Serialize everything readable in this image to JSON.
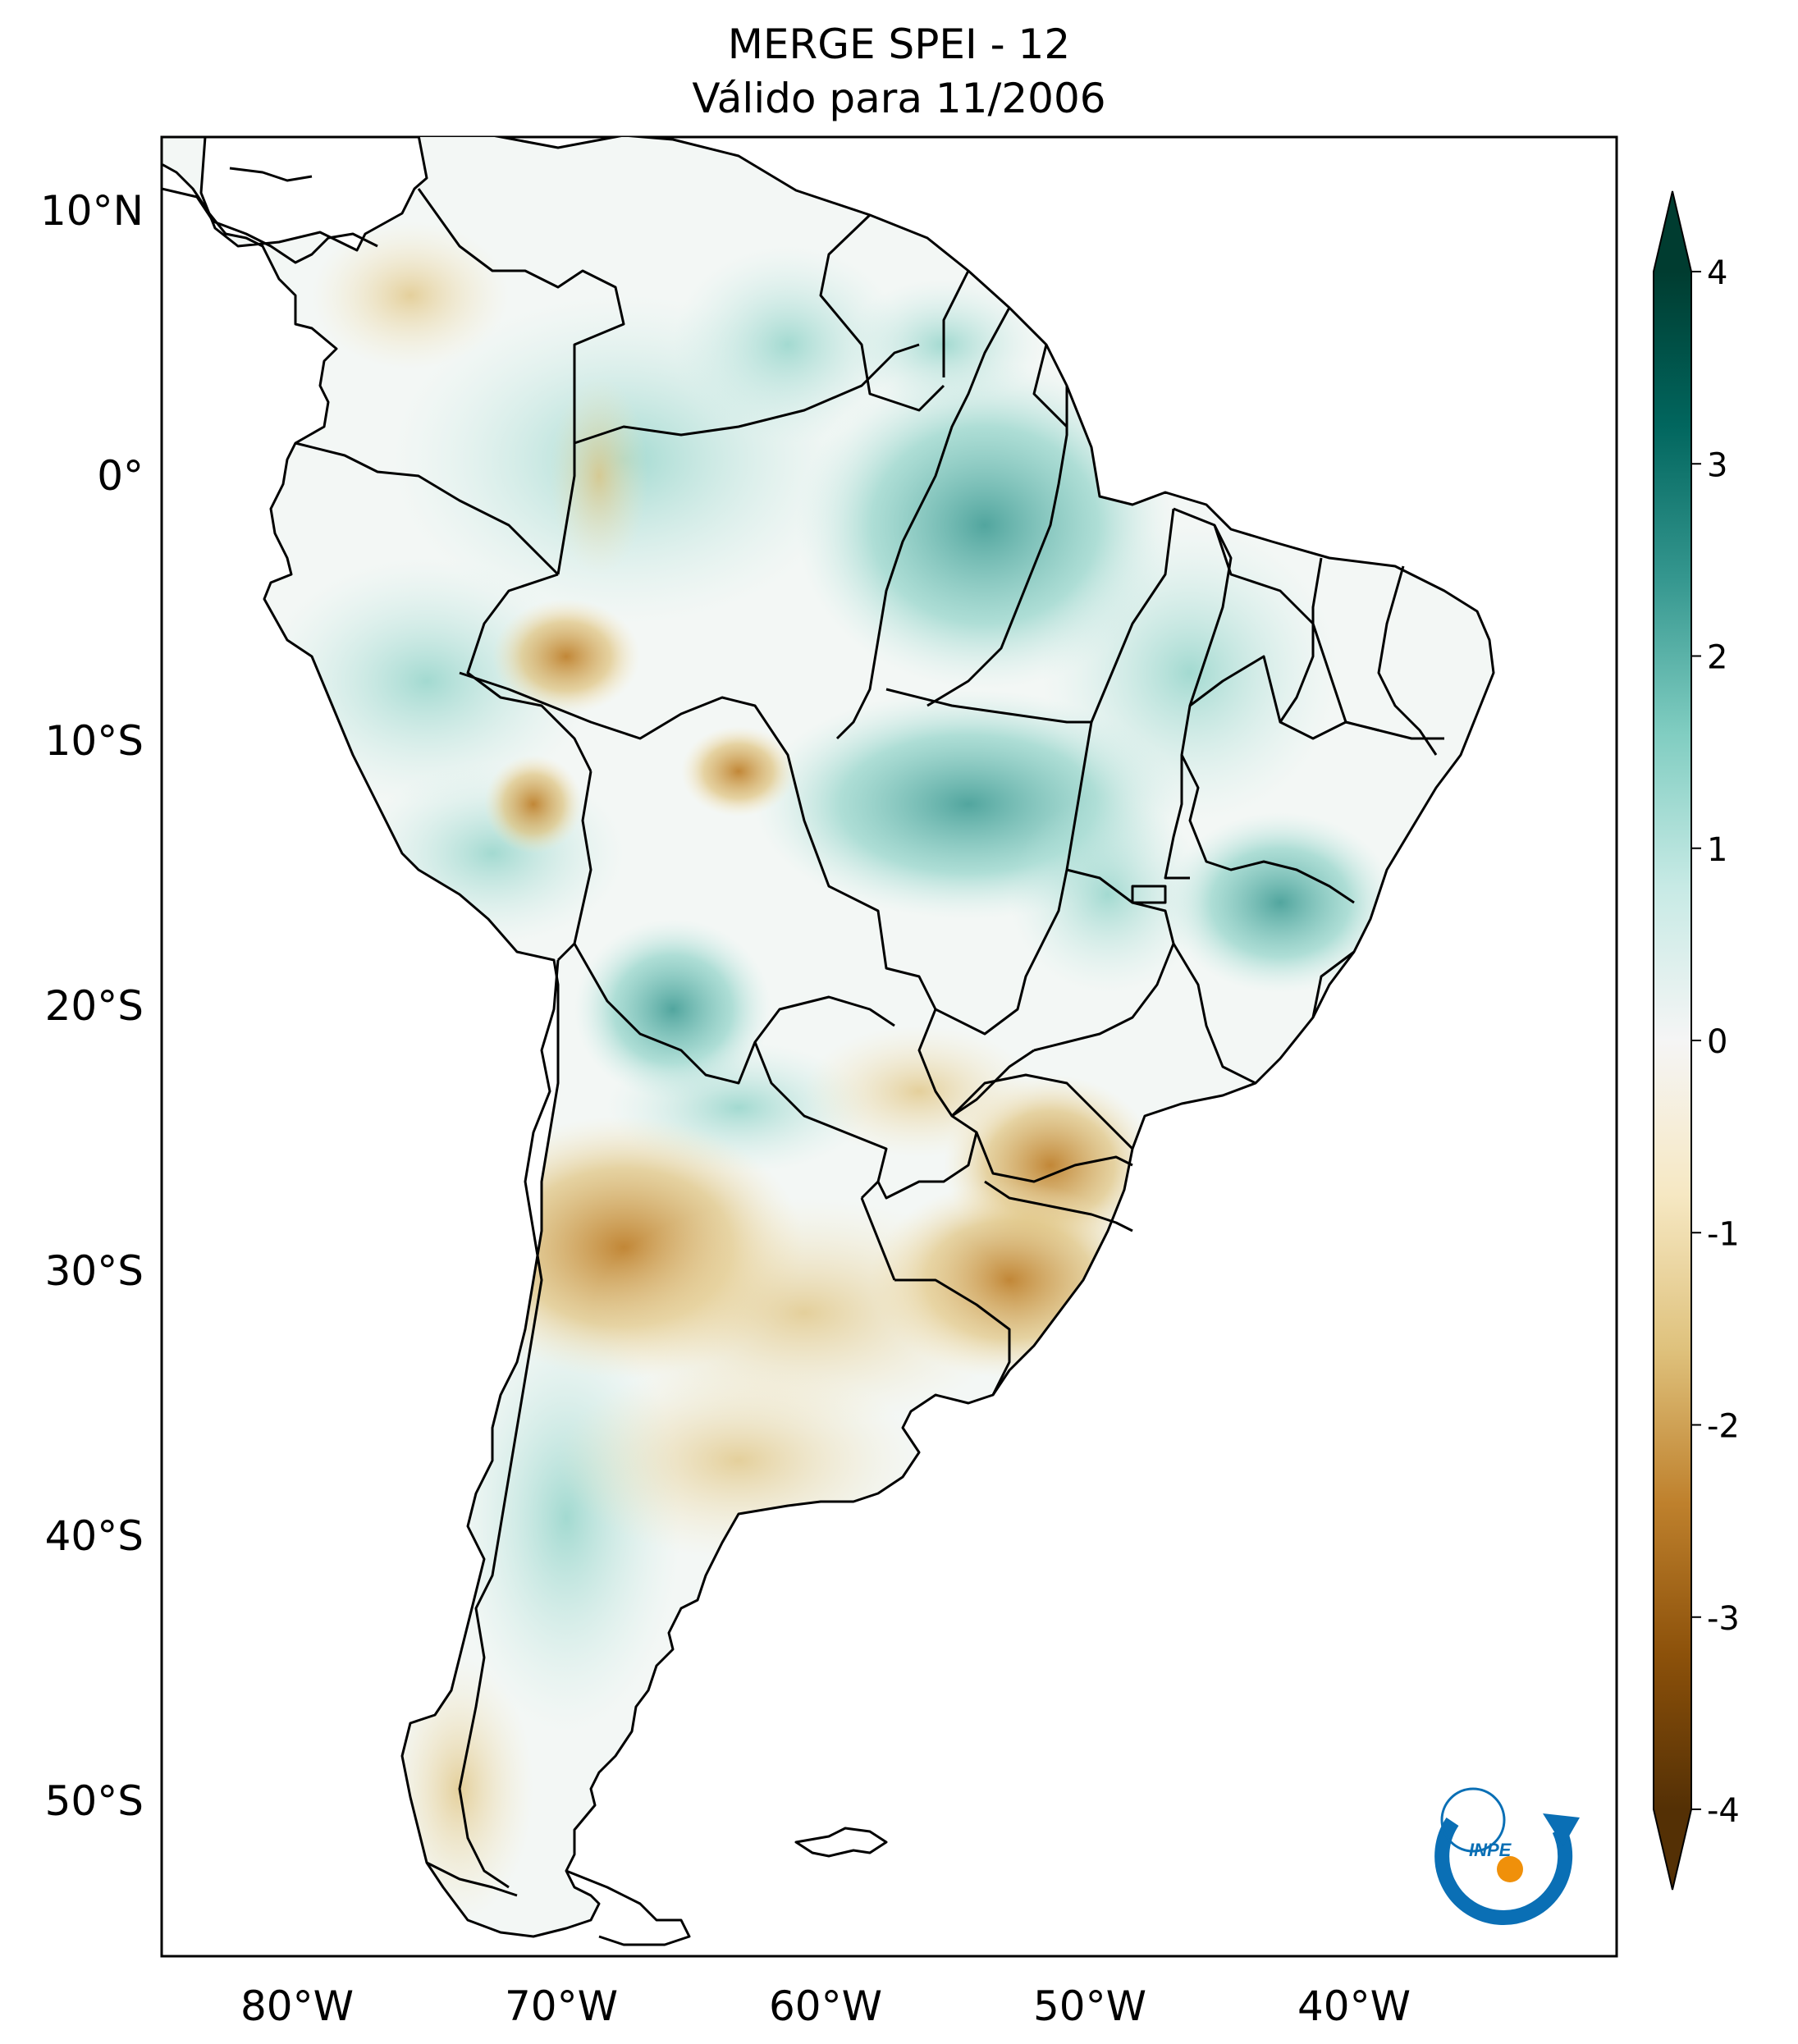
{
  "title": {
    "line1": "MERGE   SPEI - 12",
    "line2": "Válido para 11/2006"
  },
  "map": {
    "region": "South America",
    "lon_range": [
      -85,
      -30
    ],
    "lat_range": [
      -56,
      12.5
    ],
    "lon_ticks": [
      "80°W",
      "70°W",
      "60°W",
      "50°W",
      "40°W"
    ],
    "lat_ticks": [
      "10°N",
      "0°",
      "10°S",
      "20°S",
      "30°S",
      "40°S",
      "50°S"
    ],
    "lon_tick_values": [
      -80,
      -70,
      -60,
      -50,
      -40
    ],
    "lat_tick_values": [
      10,
      0,
      -10,
      -20,
      -30,
      -40,
      -50
    ]
  },
  "colorbar": {
    "min": -4,
    "max": 4,
    "extend": "both",
    "ticks": [
      "4",
      "3",
      "2",
      "1",
      "0",
      "-1",
      "-2",
      "-3",
      "-4"
    ],
    "tick_values": [
      4,
      3,
      2,
      1,
      0,
      -1,
      -2,
      -3,
      -4
    ],
    "colormap": "BrBG",
    "color_stops": [
      "#543005",
      "#8c510a",
      "#bf812d",
      "#dfc27d",
      "#f6e8c3",
      "#f5f5f5",
      "#c7eae5",
      "#80cdc1",
      "#35978f",
      "#01665e",
      "#003c30"
    ]
  },
  "logo": {
    "text": "INPE",
    "colors": [
      "#0a6fb5",
      "#f0900a"
    ]
  },
  "anomaly_regions": [
    {
      "name": "southern-brazil-drought",
      "kind": "dry"
    },
    {
      "name": "central-argentina-drought",
      "kind": "dry"
    },
    {
      "name": "amazon-wet",
      "kind": "wet"
    },
    {
      "name": "central-brazil-wet",
      "kind": "wet"
    },
    {
      "name": "patagonia-wet",
      "kind": "wet"
    }
  ]
}
